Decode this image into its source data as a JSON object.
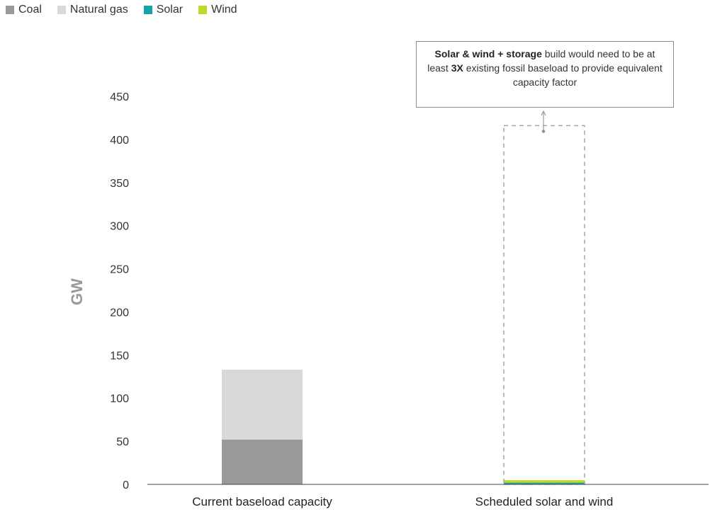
{
  "legend": [
    {
      "label": "Coal",
      "color": "#999999"
    },
    {
      "label": "Natural gas",
      "color": "#d9d9d9"
    },
    {
      "label": "Solar",
      "color": "#14a3a8"
    },
    {
      "label": "Wind",
      "color": "#c3d82e"
    }
  ],
  "annotation": {
    "bold_1": "Solar & wind + storage",
    "text_1": " build would need to be at least ",
    "bold_2": "3X",
    "text_2": " existing fossil baseload to provide equivalent capacity factor"
  },
  "chart_data": {
    "type": "bar",
    "stacked": true,
    "categories": [
      "Current baseload capacity",
      "Scheduled solar and wind"
    ],
    "ylabel": "GW",
    "ylim": [
      0,
      450
    ],
    "yticks": [
      0,
      50,
      100,
      150,
      200,
      250,
      300,
      350,
      400,
      450
    ],
    "series": [
      {
        "name": "Coal",
        "color": "#999999",
        "values": [
          52,
          0
        ]
      },
      {
        "name": "Natural gas",
        "color": "#d9d9d9",
        "values": [
          81,
          0
        ]
      },
      {
        "name": "Solar",
        "color": "#14a3a8",
        "values": [
          0,
          2
        ]
      },
      {
        "name": "Wind",
        "color": "#c3d82e",
        "values": [
          0,
          3
        ]
      }
    ],
    "required_build": {
      "category": "Scheduled solar and wind",
      "value": 416
    },
    "grid": false,
    "legend_position": "top-left"
  }
}
